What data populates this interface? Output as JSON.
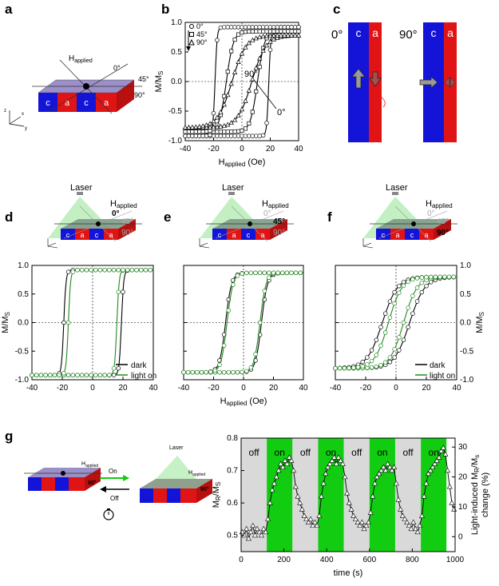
{
  "panel_labels": {
    "a": "a",
    "b": "b",
    "c": "c",
    "d": "d",
    "e": "e",
    "f": "f",
    "g": "g"
  },
  "colors": {
    "blue": "#1414d9",
    "red": "#e01414",
    "green": "#11cc11",
    "light_green": "#b8ecb8",
    "grey": "#d9d9d9",
    "dark_line": "#000000",
    "light_line": "#1d8a1d"
  },
  "panel_a": {
    "field_label": "H",
    "field_sub": "applied",
    "angles": [
      "0°",
      "45°",
      "90°"
    ],
    "domains": [
      "c",
      "a",
      "c",
      "a"
    ],
    "axes": [
      "z",
      "x",
      "y"
    ]
  },
  "panel_c": {
    "angle_left": "0°",
    "angle_right": "90°",
    "domain_c": "c",
    "domain_a": "a"
  },
  "schematic_labels": {
    "laser": "Laser",
    "field_label": "H",
    "field_sub": "applied",
    "angles": [
      "0°",
      "45°",
      "90°"
    ],
    "domains": [
      "c",
      "a",
      "c",
      "a"
    ]
  },
  "panel_g_schematic": {
    "on": "On",
    "off": "Off",
    "laser": "Laser",
    "field_label": "H",
    "field_sub": "applied",
    "angle": "90°"
  },
  "chart_data": [
    {
      "id": "b",
      "type": "line",
      "ylabel": "M/M",
      "ylabel_sub": "S",
      "xlabel": "H",
      "xlabel_sub": "applied",
      "xlabel_unit": " (Oe)",
      "xlim": [
        -40,
        40
      ],
      "ylim": [
        -1.0,
        1.0
      ],
      "xticks": [
        "-40",
        "-20",
        "0",
        "20",
        "40"
      ],
      "yticks": [
        "1.0",
        "0.5",
        "0.0",
        "-0.5",
        "-1.0"
      ],
      "legend": [
        "0°",
        "45°",
        "90°"
      ],
      "annotations": [
        "90°",
        "0°"
      ],
      "series": [
        {
          "name": "0°",
          "marker": "circle",
          "Hc": 19,
          "Ms": 0.92,
          "width": 1.5
        },
        {
          "name": "45°",
          "marker": "square",
          "Hc": 11,
          "Ms": 0.85,
          "width": 5
        },
        {
          "name": "90°",
          "marker": "triangle",
          "Hc": 7,
          "Ms": 0.78,
          "width": 10
        }
      ]
    },
    {
      "id": "d",
      "type": "line",
      "ylabel": "M/M",
      "ylabel_sub": "S",
      "xlim": [
        -40,
        40
      ],
      "ylim": [
        -1.0,
        1.0
      ],
      "xticks": [
        "-40",
        "-20",
        "0",
        "20",
        "40"
      ],
      "yticks": [
        "1.0",
        "0.5",
        "0.0",
        "-0.5",
        "-1.0"
      ],
      "legend": [
        "dark",
        "light on"
      ],
      "series": [
        {
          "name": "dark",
          "Hc": 19,
          "Ms": 0.92,
          "width": 1.5
        },
        {
          "name": "light on",
          "Hc": 16,
          "Ms": 0.92,
          "width": 1.5
        }
      ]
    },
    {
      "id": "e",
      "type": "line",
      "xlabel": "H",
      "xlabel_sub": "applied",
      "xlabel_unit": " (Oe)",
      "xlim": [
        -40,
        40
      ],
      "ylim": [
        -1.0,
        1.0
      ],
      "xticks": [
        "-40",
        "-20",
        "0",
        "20",
        "40"
      ],
      "series": [
        {
          "name": "dark",
          "Hc": 12,
          "Ms": 0.87,
          "width": 4
        },
        {
          "name": "light on",
          "Hc": 11,
          "Ms": 0.87,
          "width": 4
        }
      ]
    },
    {
      "id": "f",
      "type": "line",
      "ylabel": "M/M",
      "ylabel_sub": "S",
      "xlim": [
        -40,
        40
      ],
      "ylim": [
        -1.0,
        1.0
      ],
      "xticks": [
        "-40",
        "-20",
        "0",
        "20",
        "40"
      ],
      "yticks": [
        "1.0",
        "0.5",
        "0.0",
        "-0.5",
        "-1.0"
      ],
      "legend": [
        "dark",
        "light on"
      ],
      "series": [
        {
          "name": "dark",
          "Hc": 9,
          "Ms": 0.8,
          "width": 10
        },
        {
          "name": "light on",
          "Hc": 5,
          "Ms": 0.8,
          "width": 9
        }
      ]
    },
    {
      "id": "g",
      "type": "scatter",
      "ylabel": "M",
      "ylabel_sub": "R",
      "ylabel_tail": "/M",
      "ylabel_sub2": "S",
      "y2label_line1": "Light-induced M",
      "y2label_sub": "R",
      "y2label_mid": "/M",
      "y2label_sub2": "s",
      "y2label_line2": "change (%)",
      "xlabel": "time (s)",
      "xlim": [
        0,
        1000
      ],
      "ylim": [
        0.45,
        0.8
      ],
      "y2lim": [
        -5,
        33
      ],
      "xticks": [
        "0",
        "200",
        "400",
        "600",
        "800",
        "1000"
      ],
      "yticks": [
        "0.8",
        "0.7",
        "0.6",
        "0.5"
      ],
      "y2ticks": [
        "30",
        "20",
        "10",
        "0"
      ],
      "bands": [
        {
          "label": "off",
          "start": 0,
          "end": 120
        },
        {
          "label": "on",
          "start": 120,
          "end": 240
        },
        {
          "label": "off",
          "start": 240,
          "end": 360
        },
        {
          "label": "on",
          "start": 360,
          "end": 480
        },
        {
          "label": "off",
          "start": 480,
          "end": 600
        },
        {
          "label": "on",
          "start": 600,
          "end": 720
        },
        {
          "label": "off",
          "start": 720,
          "end": 840
        },
        {
          "label": "on",
          "start": 840,
          "end": 960
        }
      ],
      "points": [
        [
          5,
          0.51
        ],
        [
          15,
          0.5
        ],
        [
          25,
          0.52
        ],
        [
          35,
          0.49
        ],
        [
          45,
          0.51
        ],
        [
          55,
          0.53
        ],
        [
          65,
          0.5
        ],
        [
          75,
          0.52
        ],
        [
          85,
          0.51
        ],
        [
          95,
          0.5
        ],
        [
          105,
          0.52
        ],
        [
          115,
          0.51
        ],
        [
          125,
          0.55
        ],
        [
          135,
          0.6
        ],
        [
          145,
          0.64
        ],
        [
          155,
          0.66
        ],
        [
          165,
          0.68
        ],
        [
          175,
          0.7
        ],
        [
          185,
          0.72
        ],
        [
          195,
          0.71
        ],
        [
          205,
          0.73
        ],
        [
          215,
          0.72
        ],
        [
          225,
          0.74
        ],
        [
          235,
          0.73
        ],
        [
          245,
          0.7
        ],
        [
          255,
          0.65
        ],
        [
          265,
          0.62
        ],
        [
          275,
          0.6
        ],
        [
          285,
          0.58
        ],
        [
          295,
          0.56
        ],
        [
          305,
          0.55
        ],
        [
          315,
          0.54
        ],
        [
          325,
          0.55
        ],
        [
          335,
          0.53
        ],
        [
          345,
          0.54
        ],
        [
          355,
          0.53
        ],
        [
          365,
          0.56
        ],
        [
          375,
          0.62
        ],
        [
          385,
          0.66
        ],
        [
          395,
          0.69
        ],
        [
          405,
          0.71
        ],
        [
          415,
          0.72
        ],
        [
          425,
          0.73
        ],
        [
          435,
          0.74
        ],
        [
          445,
          0.72
        ],
        [
          455,
          0.74
        ],
        [
          465,
          0.73
        ],
        [
          475,
          0.72
        ],
        [
          485,
          0.68
        ],
        [
          495,
          0.63
        ],
        [
          505,
          0.6
        ],
        [
          515,
          0.58
        ],
        [
          525,
          0.56
        ],
        [
          535,
          0.55
        ],
        [
          545,
          0.54
        ],
        [
          555,
          0.53
        ],
        [
          565,
          0.54
        ],
        [
          575,
          0.52
        ],
        [
          585,
          0.53
        ],
        [
          595,
          0.54
        ],
        [
          605,
          0.57
        ],
        [
          615,
          0.62
        ],
        [
          625,
          0.66
        ],
        [
          635,
          0.68
        ],
        [
          645,
          0.69
        ],
        [
          655,
          0.7
        ],
        [
          665,
          0.71
        ],
        [
          675,
          0.7
        ],
        [
          685,
          0.72
        ],
        [
          695,
          0.71
        ],
        [
          705,
          0.7
        ],
        [
          715,
          0.71
        ],
        [
          725,
          0.66
        ],
        [
          735,
          0.61
        ],
        [
          745,
          0.58
        ],
        [
          755,
          0.56
        ],
        [
          765,
          0.55
        ],
        [
          775,
          0.54
        ],
        [
          785,
          0.53
        ],
        [
          795,
          0.52
        ],
        [
          805,
          0.54
        ],
        [
          815,
          0.52
        ],
        [
          825,
          0.51
        ],
        [
          835,
          0.53
        ],
        [
          845,
          0.56
        ],
        [
          855,
          0.62
        ],
        [
          865,
          0.66
        ],
        [
          875,
          0.69
        ],
        [
          885,
          0.7
        ],
        [
          895,
          0.71
        ],
        [
          905,
          0.72
        ],
        [
          915,
          0.73
        ],
        [
          925,
          0.74
        ],
        [
          935,
          0.76
        ],
        [
          945,
          0.77
        ],
        [
          955,
          0.75
        ],
        [
          965,
          0.7
        ],
        [
          975,
          0.65
        ],
        [
          985,
          0.6
        ],
        [
          995,
          0.58
        ]
      ]
    }
  ]
}
